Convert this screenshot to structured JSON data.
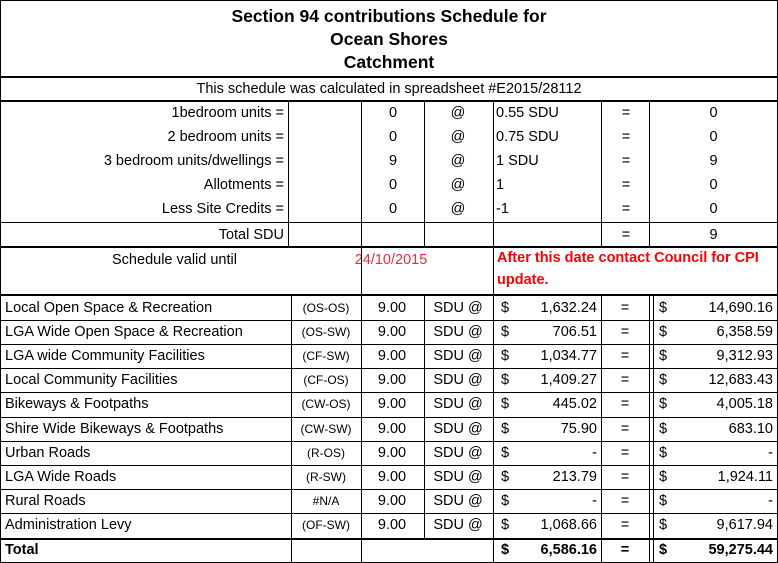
{
  "title": {
    "line1": "Section 94 contributions Schedule for",
    "line2": "Ocean Shores",
    "line3": "Catchment"
  },
  "note": "This schedule was calculated in spreadsheet #E2015/28112",
  "units": [
    {
      "label": "1bedroom units =",
      "count": "0",
      "at": "@",
      "rate": "0.55 SDU",
      "eq": "=",
      "result": "0"
    },
    {
      "label": "2 bedroom units =",
      "count": "0",
      "at": "@",
      "rate": "0.75 SDU",
      "eq": "=",
      "result": "0"
    },
    {
      "label": "3 bedroom units/dwellings =",
      "count": "9",
      "at": "@",
      "rate": "1 SDU",
      "eq": "=",
      "result": "9"
    },
    {
      "label": "Allotments =",
      "count": "0",
      "at": "@",
      "rate": "1",
      "eq": "=",
      "result": "0"
    },
    {
      "label": "Less Site Credits =",
      "count": "0",
      "at": "@",
      "rate": "-1",
      "eq": "=",
      "result": "0"
    }
  ],
  "total_sdu": {
    "label": "Total SDU",
    "eq": "=",
    "value": "9"
  },
  "validity": {
    "label": "Schedule valid until",
    "date": "24/10/2015",
    "warning": "After this date contact Council for CPI update."
  },
  "contributions": [
    {
      "name": "Local Open Space & Recreation",
      "code": "(OS-OS)",
      "sdu": "9.00",
      "unit": "SDU @",
      "cur": "$",
      "rate": "1,632.24",
      "eq": "=",
      "cur2": "$",
      "amount": "14,690.16"
    },
    {
      "name": "LGA Wide Open Space & Recreation",
      "code": "(OS-SW)",
      "sdu": "9.00",
      "unit": "SDU @",
      "cur": "$",
      "rate": "706.51",
      "eq": "=",
      "cur2": "$",
      "amount": "6,358.59"
    },
    {
      "name": "LGA wide Community Facilities",
      "code": "(CF-SW)",
      "sdu": "9.00",
      "unit": "SDU @",
      "cur": "$",
      "rate": "1,034.77",
      "eq": "=",
      "cur2": "$",
      "amount": "9,312.93"
    },
    {
      "name": "Local Community Facilities",
      "code": "(CF-OS)",
      "sdu": "9.00",
      "unit": "SDU @",
      "cur": "$",
      "rate": "1,409.27",
      "eq": "=",
      "cur2": "$",
      "amount": "12,683.43"
    },
    {
      "name": "Bikeways & Footpaths",
      "code": "(CW-OS)",
      "sdu": "9.00",
      "unit": "SDU @",
      "cur": "$",
      "rate": "445.02",
      "eq": "=",
      "cur2": "$",
      "amount": "4,005.18"
    },
    {
      "name": "Shire Wide Bikeways & Footpaths",
      "code": "(CW-SW)",
      "sdu": "9.00",
      "unit": "SDU @",
      "cur": "$",
      "rate": "75.90",
      "eq": "=",
      "cur2": "$",
      "amount": "683.10"
    },
    {
      "name": "Urban Roads",
      "code": "(R-OS)",
      "sdu": "9.00",
      "unit": "SDU @",
      "cur": "$",
      "rate": "-",
      "eq": "=",
      "cur2": "$",
      "amount": "-"
    },
    {
      "name": "LGA Wide Roads",
      "code": "(R-SW)",
      "sdu": "9.00",
      "unit": "SDU @",
      "cur": "$",
      "rate": "213.79",
      "eq": "=",
      "cur2": "$",
      "amount": "1,924.11"
    },
    {
      "name": "Rural Roads",
      "code": "#N/A",
      "sdu": "9.00",
      "unit": "SDU @",
      "cur": "$",
      "rate": "-",
      "eq": "=",
      "cur2": "$",
      "amount": "-"
    },
    {
      "name": "Administration Levy",
      "code": "(OF-SW)",
      "sdu": "9.00",
      "unit": "SDU @",
      "cur": "$",
      "rate": "1,068.66",
      "eq": "=",
      "cur2": "$",
      "amount": "9,617.94"
    }
  ],
  "total": {
    "label": "Total",
    "cur": "$",
    "rate": "6,586.16",
    "eq": "=",
    "cur2": "$",
    "amount": "59,275.44"
  }
}
